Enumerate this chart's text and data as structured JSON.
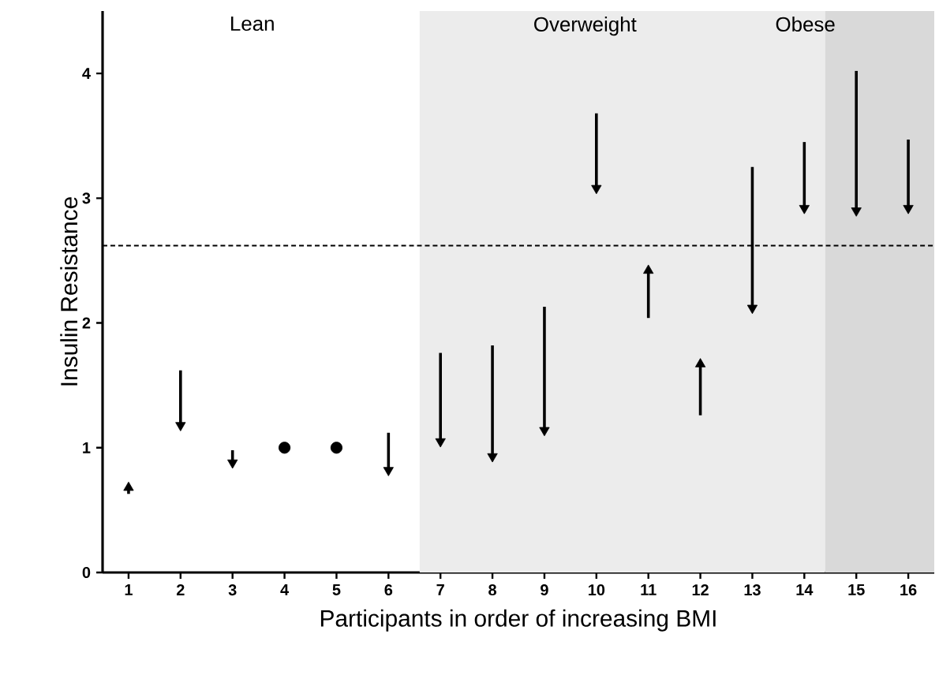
{
  "chart_data": {
    "type": "scatter",
    "xlabel": "Participants in order of increasing BMI",
    "ylabel": "Insulin Resistance",
    "series": [
      {
        "color": "#000000",
        "marker": "triangle",
        "x": [
          1,
          2,
          3,
          6,
          7,
          8,
          9,
          10,
          11,
          12,
          13,
          14,
          15,
          16
        ],
        "values": [
          0.68,
          1.18,
          0.88,
          0.82,
          1.05,
          0.93,
          1.14,
          3.08,
          2.42,
          1.67,
          2.12,
          2.92,
          2.9,
          2.92
        ],
        "errors": [
          [
            0.63,
            0.68
          ],
          [
            1.18,
            1.62
          ],
          [
            0.88,
            0.98
          ],
          [
            0.82,
            1.12
          ],
          [
            1.05,
            1.76
          ],
          [
            0.93,
            1.82
          ],
          [
            1.14,
            2.13
          ],
          [
            3.08,
            3.68
          ],
          [
            2.04,
            2.42
          ],
          [
            1.26,
            1.67
          ],
          [
            2.12,
            3.25
          ],
          [
            2.92,
            3.45
          ],
          [
            2.9,
            4.02
          ],
          [
            2.92,
            3.47
          ]
        ]
      },
      {
        "color": "#000000",
        "marker": "circle",
        "x": [
          4,
          5
        ],
        "values": [
          1.0,
          1.0
        ]
      }
    ],
    "xlim": [
      0.5,
      16.5
    ],
    "xticks": [
      1,
      2,
      3,
      4,
      5,
      6,
      7,
      8,
      9,
      10,
      11,
      12,
      13,
      14,
      15,
      16
    ],
    "ylim": [
      0,
      4.5
    ],
    "yticks": [
      0,
      1,
      2,
      3,
      4
    ],
    "ref_lines": [
      {
        "axis": "y",
        "value": 2.62,
        "line_style": "dashed"
      }
    ],
    "bands": [
      {
        "axis": "x",
        "from": 6.6,
        "to": 14.4,
        "color": "#ececec"
      },
      {
        "axis": "x",
        "from": 14.4,
        "to": 16.5,
        "color": "#d9d9d9"
      }
    ],
    "annotations": [
      "Lean",
      "Overweight",
      "Obese"
    ],
    "grid": false
  }
}
